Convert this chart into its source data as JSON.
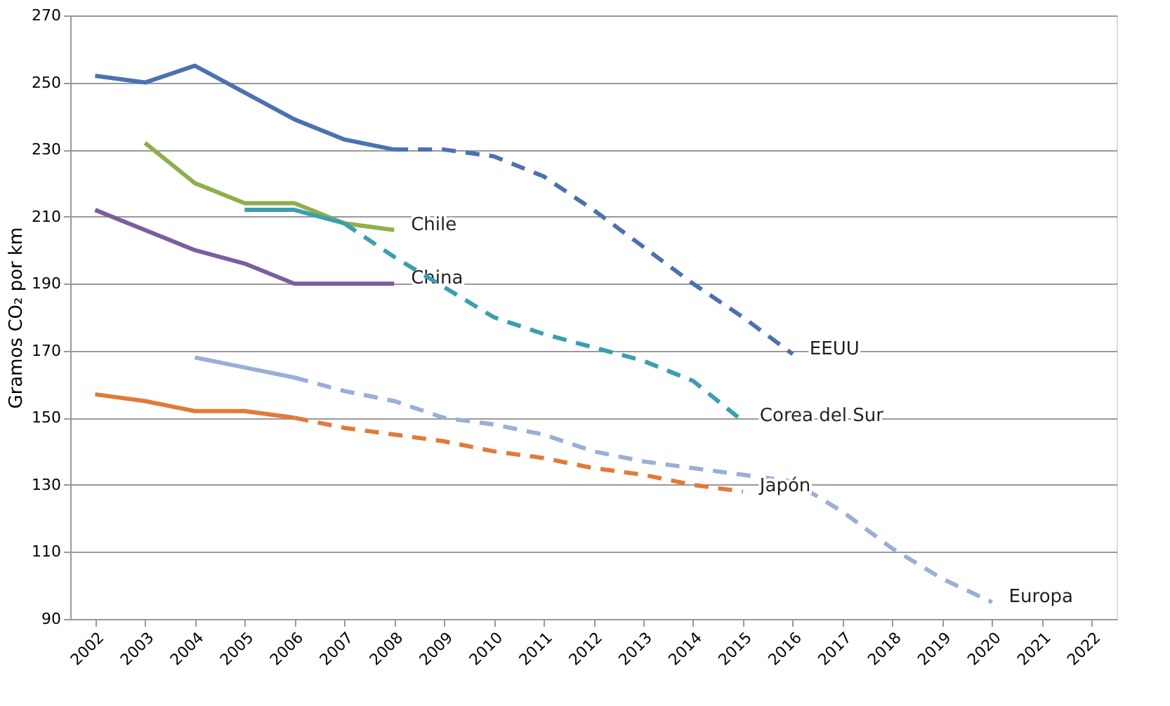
{
  "chart_data": {
    "type": "line",
    "ylabel": "Gramos CO₂ por km",
    "categories": [
      "2002",
      "2003",
      "2004",
      "2005",
      "2006",
      "2007",
      "2008",
      "2009",
      "2010",
      "2011",
      "2012",
      "2013",
      "2014",
      "2015",
      "2016",
      "2017",
      "2018",
      "2019",
      "2020",
      "2021",
      "2022"
    ],
    "ylim": [
      90,
      270
    ],
    "yticks": [
      90,
      110,
      130,
      150,
      170,
      190,
      210,
      230,
      250,
      270
    ],
    "grid": "y",
    "marker": "none",
    "series": [
      {
        "color": "#4a72b0",
        "line_style": "solid",
        "values": [
          252,
          250,
          255,
          247,
          239,
          233,
          230,
          null,
          null,
          null,
          null,
          null,
          null,
          null,
          null,
          null,
          null,
          null,
          null,
          null,
          null
        ]
      },
      {
        "name": "EEUU",
        "color": "#4a72b0",
        "line_style": "dashed",
        "values": [
          null,
          null,
          null,
          null,
          null,
          null,
          230,
          230,
          228,
          222,
          212,
          201,
          190,
          180,
          169,
          null,
          null,
          null,
          null,
          null,
          null
        ]
      },
      {
        "name": "Chile",
        "color": "#8db04a",
        "line_style": "solid",
        "values": [
          null,
          232,
          220,
          214,
          214,
          208,
          206,
          null,
          null,
          null,
          null,
          null,
          null,
          null,
          null,
          null,
          null,
          null,
          null,
          null,
          null
        ]
      },
      {
        "name": "China",
        "color": "#7a5ea0",
        "line_style": "solid",
        "values": [
          212,
          206,
          200,
          196,
          190,
          190,
          190,
          null,
          null,
          null,
          null,
          null,
          null,
          null,
          null,
          null,
          null,
          null,
          null,
          null,
          null
        ]
      },
      {
        "color": "#3a9fb0",
        "line_style": "solid",
        "values": [
          null,
          null,
          null,
          212,
          212,
          208,
          null,
          null,
          null,
          null,
          null,
          null,
          null,
          null,
          null,
          null,
          null,
          null,
          null,
          null,
          null
        ]
      },
      {
        "name": "Corea del Sur",
        "color": "#3a9fb0",
        "line_style": "dashed",
        "values": [
          null,
          null,
          null,
          null,
          null,
          208,
          198,
          189,
          180,
          175,
          171,
          167,
          161,
          149,
          null,
          null,
          null,
          null,
          null,
          null,
          null
        ]
      },
      {
        "color": "#9aafd6",
        "line_style": "solid",
        "values": [
          null,
          null,
          168,
          165,
          162,
          null,
          null,
          null,
          null,
          null,
          null,
          null,
          null,
          null,
          null,
          null,
          null,
          null,
          null,
          null,
          null
        ]
      },
      {
        "name": "Europa",
        "color": "#9aafd6",
        "line_style": "dashed",
        "values": [
          null,
          null,
          null,
          null,
          162,
          158,
          155,
          150,
          148,
          145,
          140,
          137,
          135,
          133,
          131,
          122,
          111,
          102,
          95,
          null,
          null
        ]
      },
      {
        "color": "#e07b39",
        "line_style": "solid",
        "values": [
          157,
          155,
          152,
          152,
          150,
          null,
          null,
          null,
          null,
          null,
          null,
          null,
          null,
          null,
          null,
          null,
          null,
          null,
          null,
          null,
          null
        ]
      },
      {
        "name": "Japón",
        "color": "#e07b39",
        "line_style": "dashed",
        "values": [
          null,
          null,
          null,
          null,
          150,
          147,
          145,
          143,
          140,
          138,
          135,
          133,
          130,
          128,
          null,
          null,
          null,
          null,
          null,
          null,
          null
        ]
      }
    ]
  }
}
